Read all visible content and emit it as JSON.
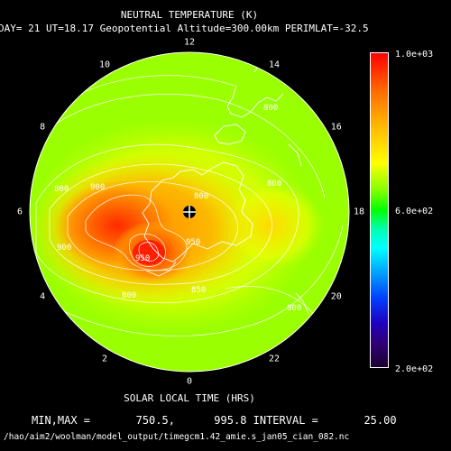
{
  "title": "NEUTRAL TEMPERATURE (K)",
  "subtitle": "DAY= 21 UT=18.17 Geopotential Altitude=300.00km PERIMLAT=-32.5",
  "local_time_labels": [
    "12",
    "14",
    "16",
    "18",
    "20",
    "22",
    "0",
    "2",
    "4",
    "6",
    "8",
    "10"
  ],
  "xlabel": "SOLAR LOCAL TIME (HRS)",
  "colorbar": {
    "max_label": "1.0e+03",
    "mid_label": "6.0e+02",
    "min_label": "2.0e+02"
  },
  "minmax_line": "MIN,MAX =       750.5,      995.8 INTERVAL =       25.00",
  "file_path": "/hao/aim2/woolman/model_output/timegcm1.42_amie.s_jan05_cian_082.nc",
  "contour_labels": [
    "800",
    "800",
    "800",
    "900",
    "900",
    "950",
    "950",
    "850",
    "800",
    "800",
    "800"
  ],
  "colors": {
    "background": "#000000",
    "text": "#ffffff",
    "contour": "#ffffff"
  }
}
